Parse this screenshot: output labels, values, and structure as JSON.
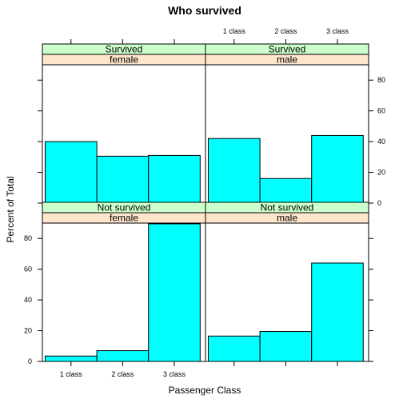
{
  "chart_data": {
    "type": "bar",
    "title": "Who survived",
    "xlabel": "Passenger Class",
    "ylabel": "Percent of Total",
    "categories": [
      "1 class",
      "2 class",
      "3 class"
    ],
    "ylim": [
      0,
      90
    ],
    "yticks": [
      0,
      20,
      40,
      60,
      80
    ],
    "bar_color": "#00ffff",
    "strip_colors": {
      "outer": "#ccffcc",
      "inner": "#ffe5cc"
    },
    "panels": [
      {
        "row": 0,
        "col": 0,
        "outcome": "Survived",
        "sex": "female",
        "values": [
          40,
          30.5,
          31
        ]
      },
      {
        "row": 0,
        "col": 1,
        "outcome": "Survived",
        "sex": "male",
        "values": [
          42,
          16,
          44
        ]
      },
      {
        "row": 1,
        "col": 0,
        "outcome": "Not survived",
        "sex": "female",
        "values": [
          3.5,
          7,
          89.5
        ]
      },
      {
        "row": 1,
        "col": 1,
        "outcome": "Not survived",
        "sex": "male",
        "values": [
          16.5,
          19.5,
          64
        ]
      }
    ]
  }
}
